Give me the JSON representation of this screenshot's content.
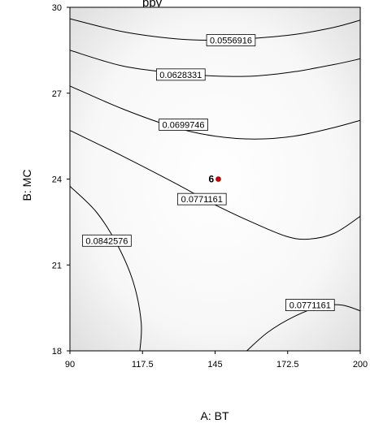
{
  "chart_data": {
    "type": "contour",
    "title_partial": "ppy",
    "xlabel": "A: BT",
    "ylabel": "B: MC",
    "xlim": [
      90,
      200
    ],
    "ylim": [
      18,
      30
    ],
    "x_ticks": [
      "90",
      "117.5",
      "145",
      "172.5",
      "200"
    ],
    "y_ticks": [
      "18",
      "21",
      "24",
      "27",
      "30"
    ],
    "grid": false,
    "contours": [
      {
        "level": "0.0556916",
        "points": [
          [
            90,
            29.6
          ],
          [
            110,
            29.15
          ],
          [
            130,
            28.9
          ],
          [
            145,
            28.85
          ],
          [
            160,
            28.92
          ],
          [
            175,
            29.05
          ],
          [
            190,
            29.3
          ],
          [
            200,
            29.55
          ]
        ],
        "label_at": [
          151,
          28.85
        ]
      },
      {
        "level": "0.0628331",
        "points": [
          [
            90,
            28.5
          ],
          [
            110,
            27.95
          ],
          [
            130,
            27.7
          ],
          [
            145,
            27.6
          ],
          [
            160,
            27.6
          ],
          [
            175,
            27.75
          ],
          [
            190,
            28.0
          ],
          [
            200,
            28.2
          ]
        ],
        "label_at": [
          132,
          27.65
        ]
      },
      {
        "level": "0.0699746",
        "points": [
          [
            90,
            27.25
          ],
          [
            110,
            26.45
          ],
          [
            130,
            25.8
          ],
          [
            145,
            25.5
          ],
          [
            160,
            25.4
          ],
          [
            175,
            25.5
          ],
          [
            190,
            25.8
          ],
          [
            200,
            26.05
          ]
        ],
        "label_at": [
          133,
          25.9
        ]
      },
      {
        "level": "0.0771161",
        "points": [
          [
            90,
            25.7
          ],
          [
            110,
            24.8
          ],
          [
            130,
            23.85
          ],
          [
            145,
            23.1
          ],
          [
            160,
            22.45
          ],
          [
            172,
            22.0
          ],
          [
            180,
            21.9
          ],
          [
            190,
            22.1
          ],
          [
            200,
            22.7
          ]
        ],
        "label_at": [
          140,
          23.3
        ]
      },
      {
        "level": "0.0842576",
        "points": [
          [
            90,
            23.75
          ],
          [
            100,
            22.85
          ],
          [
            108,
            21.7
          ],
          [
            114,
            20.4
          ],
          [
            117,
            19.0
          ],
          [
            116.5,
            18.0
          ]
        ],
        "label_at": [
          104,
          21.85
        ]
      },
      {
        "level": "0.0771161",
        "points": [
          [
            157,
            18.0
          ],
          [
            165,
            18.65
          ],
          [
            175,
            19.2
          ],
          [
            185,
            19.55
          ],
          [
            193,
            19.6
          ],
          [
            200,
            19.4
          ]
        ],
        "label_at": [
          181,
          19.6
        ]
      }
    ],
    "points": [
      {
        "x": 145,
        "y": 24.0,
        "label": "6",
        "color": "#cc0000"
      }
    ],
    "colors": {
      "background_edge": "#d9d9d9",
      "background_center": "#ffffff",
      "line": "#000000",
      "point": "#cc0000"
    }
  }
}
